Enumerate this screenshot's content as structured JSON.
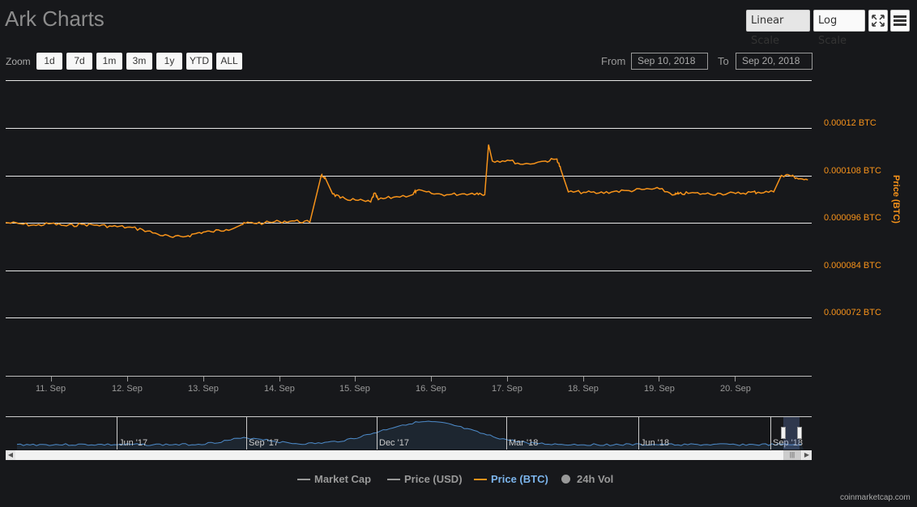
{
  "header": {
    "title": "Ark Charts",
    "buttons": {
      "linear": "Linear Scale",
      "log": "Log Scale"
    }
  },
  "toolbar": {
    "zoom_label": "Zoom",
    "zoom_buttons": [
      "1d",
      "7d",
      "1m",
      "3m",
      "1y",
      "YTD",
      "ALL"
    ],
    "from_label": "From",
    "from_value": "Sep 10, 2018",
    "to_label": "To",
    "to_value": "Sep 20, 2018"
  },
  "chart_data": {
    "type": "line",
    "ylabel": "Price (BTC)",
    "y_ticks": [
      "0.00012 BTC",
      "0.000108 BTC",
      "0.000096 BTC",
      "0.000084 BTC",
      "0.000072 BTC"
    ],
    "y_tick_values": [
      0.00012,
      0.000108,
      9.6e-05,
      8.4e-05,
      7.2e-05
    ],
    "ylim": [
      6e-05,
      0.000132
    ],
    "x_ticks": [
      "11. Sep",
      "12. Sep",
      "13. Sep",
      "14. Sep",
      "15. Sep",
      "16. Sep",
      "17. Sep",
      "18. Sep",
      "19. Sep",
      "20. Sep"
    ],
    "xlim": [
      10.4,
      21.0
    ],
    "series": [
      {
        "name": "Price (BTC)",
        "color": "#f7931a",
        "x": [
          10.4,
          10.6,
          10.8,
          11.0,
          11.2,
          11.4,
          11.6,
          11.8,
          12.0,
          12.2,
          12.4,
          12.6,
          12.8,
          12.95,
          13.1,
          13.3,
          13.5,
          13.6,
          13.8,
          14.0,
          14.2,
          14.4,
          14.55,
          14.6,
          14.7,
          14.8,
          15.0,
          15.2,
          15.25,
          15.3,
          15.5,
          15.75,
          15.8,
          16.0,
          16.2,
          16.4,
          16.6,
          16.7,
          16.75,
          16.8,
          17.0,
          17.2,
          17.5,
          17.65,
          17.7,
          17.8,
          18.0,
          18.2,
          18.4,
          18.6,
          18.8,
          19.0,
          19.2,
          19.25,
          19.4,
          19.6,
          19.8,
          20.0,
          20.2,
          20.3,
          20.5,
          20.6,
          20.7,
          20.8,
          20.95
        ],
        "values": [
          9.75e-05,
          9.72e-05,
          9.68e-05,
          9.73e-05,
          9.67e-05,
          9.71e-05,
          9.69e-05,
          9.66e-05,
          9.64e-05,
          9.58e-05,
          9.47e-05,
          9.39e-05,
          9.43e-05,
          9.51e-05,
          9.53e-05,
          9.58e-05,
          9.7e-05,
          9.75e-05,
          9.74e-05,
          9.78e-05,
          9.79e-05,
          9.76e-05,
          0.000109,
          0.0001085,
          0.0001045,
          0.0001035,
          0.000103,
          0.0001025,
          0.0001047,
          0.0001031,
          0.0001037,
          0.0001043,
          0.0001053,
          0.0001046,
          0.0001043,
          0.0001045,
          0.0001047,
          0.0001043,
          0.0001165,
          0.0001125,
          0.0001127,
          0.0001117,
          0.0001125,
          0.000113,
          0.0001105,
          0.000105,
          0.0001049,
          0.0001047,
          0.0001051,
          0.0001053,
          0.0001056,
          0.0001057,
          0.0001043,
          0.0001045,
          0.0001047,
          0.0001045,
          0.0001046,
          0.0001046,
          0.0001049,
          0.0001049,
          0.000105,
          0.000109,
          0.0001091,
          0.0001084,
          0.0001079
        ]
      }
    ],
    "navigator": {
      "labels": [
        "Jun '17",
        "Sep '17",
        "Dec '17",
        "Mar '18",
        "Jun '18",
        "Sep '18"
      ],
      "series_color": "#4e8ccb"
    },
    "legend": [
      {
        "name": "Market Cap",
        "color": "#999999",
        "active": false
      },
      {
        "name": "Price (USD)",
        "color": "#999999",
        "active": false
      },
      {
        "name": "Price (BTC)",
        "color": "#f7931a",
        "active": true
      },
      {
        "name": "24h Vol",
        "color": "#999999",
        "active": false
      }
    ]
  },
  "footer": {
    "credit": "coinmarketcap.com"
  }
}
